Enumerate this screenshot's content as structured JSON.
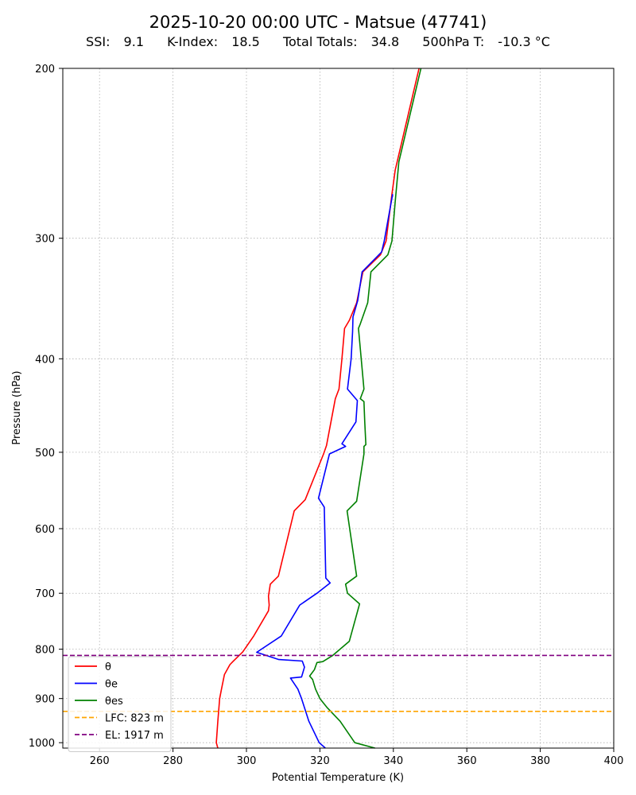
{
  "chart_data": {
    "type": "line",
    "title": "2025-10-20 00:00 UTC - Matsue (47741)",
    "indices": [
      {
        "label": "SSI:",
        "value": "9.1"
      },
      {
        "label": "K-Index:",
        "value": "18.5"
      },
      {
        "label": "Total Totals:",
        "value": "34.8"
      },
      {
        "label": "500hPa T:",
        "value": "-10.3 °C"
      }
    ],
    "xlabel": "Potential Temperature (K)",
    "ylabel": "Pressure (hPa)",
    "xlim": [
      250,
      400
    ],
    "ylim": [
      1013,
      200
    ],
    "yscale": "log",
    "xticks": [
      260,
      280,
      300,
      320,
      340,
      360,
      380,
      400
    ],
    "yticks": [
      1000,
      900,
      800,
      700,
      600,
      500,
      400,
      300,
      200
    ],
    "grid": true,
    "legend_position": "lower-left",
    "series": [
      {
        "name": "θ",
        "color": "#ff0000",
        "points": [
          [
            292.2,
            1013
          ],
          [
            291.8,
            1000
          ],
          [
            292.2,
            950
          ],
          [
            292.7,
            900
          ],
          [
            293.2,
            880
          ],
          [
            294.0,
            850
          ],
          [
            295.5,
            830
          ],
          [
            296.3,
            824
          ],
          [
            298.0,
            812
          ],
          [
            299.0,
            805
          ],
          [
            302.0,
            775
          ],
          [
            306.0,
            730
          ],
          [
            306.2,
            720
          ],
          [
            306.0,
            705
          ],
          [
            306.5,
            685
          ],
          [
            308.7,
            672
          ],
          [
            313.0,
            575
          ],
          [
            316.0,
            560
          ],
          [
            321.0,
            502
          ],
          [
            321.8,
            492
          ],
          [
            323.0,
            465
          ],
          [
            324.2,
            440
          ],
          [
            325.2,
            430
          ],
          [
            326.0,
            400
          ],
          [
            326.7,
            372
          ],
          [
            328.0,
            365
          ],
          [
            330.0,
            350
          ],
          [
            331.7,
            325
          ],
          [
            336.5,
            312
          ],
          [
            338.0,
            302
          ],
          [
            339.6,
            270
          ],
          [
            340.5,
            255
          ],
          [
            347.0,
            200
          ]
        ]
      },
      {
        "name": "θe",
        "color": "#0000ff",
        "points": [
          [
            321.5,
            1013
          ],
          [
            319.8,
            1000
          ],
          [
            317.0,
            950
          ],
          [
            315.0,
            900
          ],
          [
            314.0,
            880
          ],
          [
            312.0,
            857
          ],
          [
            315.0,
            855
          ],
          [
            315.8,
            835
          ],
          [
            315.2,
            823
          ],
          [
            308.8,
            820
          ],
          [
            302.8,
            806
          ],
          [
            309.5,
            775
          ],
          [
            314.5,
            720
          ],
          [
            319.2,
            700
          ],
          [
            322.8,
            683
          ],
          [
            321.6,
            675
          ],
          [
            321.2,
            570
          ],
          [
            319.6,
            558
          ],
          [
            322.6,
            502
          ],
          [
            327.0,
            493
          ],
          [
            326.0,
            490
          ],
          [
            329.8,
            465
          ],
          [
            330.2,
            442
          ],
          [
            327.5,
            430
          ],
          [
            328.5,
            400
          ],
          [
            328.9,
            375
          ],
          [
            329.0,
            362
          ],
          [
            330.3,
            348
          ],
          [
            331.5,
            325
          ],
          [
            336.8,
            310
          ],
          [
            337.5,
            302
          ],
          [
            339.8,
            270
          ]
        ]
      },
      {
        "name": "θes",
        "color": "#008000",
        "points": [
          [
            335.0,
            1013
          ],
          [
            329.5,
            1000
          ],
          [
            325.5,
            950
          ],
          [
            322.0,
            920
          ],
          [
            320.0,
            900
          ],
          [
            318.8,
            880
          ],
          [
            318.0,
            860
          ],
          [
            317.2,
            853
          ],
          [
            318.5,
            840
          ],
          [
            319.2,
            826
          ],
          [
            320.8,
            824
          ],
          [
            323.5,
            812
          ],
          [
            328.0,
            785
          ],
          [
            330.8,
            718
          ],
          [
            327.5,
            700
          ],
          [
            327.0,
            685
          ],
          [
            330.0,
            672
          ],
          [
            327.4,
            575
          ],
          [
            330.0,
            562
          ],
          [
            332.0,
            502
          ],
          [
            332.0,
            493
          ],
          [
            332.5,
            491
          ],
          [
            332.2,
            465
          ],
          [
            332.0,
            443
          ],
          [
            331.0,
            440
          ],
          [
            332.0,
            430
          ],
          [
            330.5,
            372
          ],
          [
            331.0,
            368
          ],
          [
            333.0,
            350
          ],
          [
            333.9,
            325
          ],
          [
            338.5,
            312
          ],
          [
            339.6,
            302
          ],
          [
            340.5,
            275
          ],
          [
            341.5,
            250
          ],
          [
            347.5,
            200
          ]
        ]
      }
    ],
    "levels": [
      {
        "name": "LFC: 823 m",
        "pressure": 928,
        "color": "#ffa500"
      },
      {
        "name": "EL: 1917 m",
        "pressure": 812,
        "color": "#800080"
      }
    ]
  }
}
